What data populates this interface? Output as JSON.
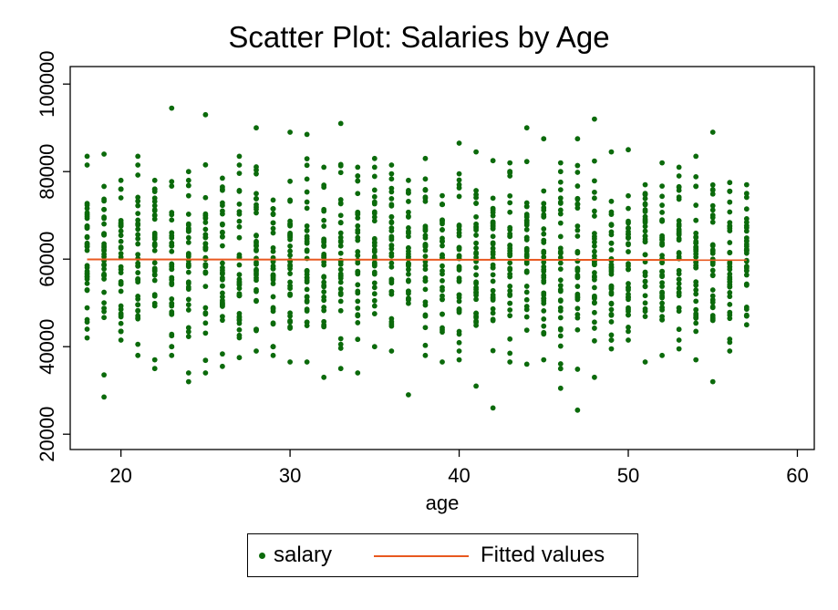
{
  "chart_data": {
    "type": "scatter",
    "title": "Scatter Plot: Salaries by Age",
    "xlabel": "age",
    "ylabel": "",
    "xlim": [
      17,
      61
    ],
    "ylim": [
      16500,
      104000
    ],
    "x_ticks": [
      20,
      30,
      40,
      50,
      60
    ],
    "y_ticks": [
      20000,
      40000,
      60000,
      80000,
      100000
    ],
    "grid": false,
    "legend_position": "bottom",
    "colors": {
      "scatter": "#0b6a0b",
      "fit": "#e8581f"
    },
    "series": [
      {
        "name": "salary",
        "type": "scatter",
        "x_range": [
          18,
          57
        ],
        "summary_per_age": [
          {
            "x": 18,
            "min": 42000,
            "max": 83500
          },
          {
            "x": 19,
            "min": 28500,
            "max": 84000
          },
          {
            "x": 20,
            "min": 41500,
            "max": 78000
          },
          {
            "x": 21,
            "min": 38000,
            "max": 83500
          },
          {
            "x": 22,
            "min": 35000,
            "max": 78000
          },
          {
            "x": 23,
            "min": 38000,
            "max": 94500
          },
          {
            "x": 24,
            "min": 32000,
            "max": 80000
          },
          {
            "x": 25,
            "min": 34000,
            "max": 93000
          },
          {
            "x": 26,
            "min": 35500,
            "max": 78500
          },
          {
            "x": 27,
            "min": 37500,
            "max": 83500
          },
          {
            "x": 28,
            "min": 39000,
            "max": 90000
          },
          {
            "x": 29,
            "min": 38000,
            "max": 73500
          },
          {
            "x": 30,
            "min": 36500,
            "max": 89000
          },
          {
            "x": 31,
            "min": 36500,
            "max": 88500
          },
          {
            "x": 32,
            "min": 33000,
            "max": 81000
          },
          {
            "x": 33,
            "min": 35000,
            "max": 91000
          },
          {
            "x": 34,
            "min": 34000,
            "max": 81000
          },
          {
            "x": 35,
            "min": 40000,
            "max": 83000
          },
          {
            "x": 36,
            "min": 39000,
            "max": 81500
          },
          {
            "x": 37,
            "min": 29000,
            "max": 78000
          },
          {
            "x": 38,
            "min": 38000,
            "max": 83000
          },
          {
            "x": 39,
            "min": 36500,
            "max": 74500
          },
          {
            "x": 40,
            "min": 37000,
            "max": 86500
          },
          {
            "x": 41,
            "min": 31000,
            "max": 84500
          },
          {
            "x": 42,
            "min": 26000,
            "max": 82500
          },
          {
            "x": 43,
            "min": 36500,
            "max": 82000
          },
          {
            "x": 44,
            "min": 36000,
            "max": 90000
          },
          {
            "x": 45,
            "min": 37000,
            "max": 87500
          },
          {
            "x": 46,
            "min": 30500,
            "max": 82000
          },
          {
            "x": 47,
            "min": 25500,
            "max": 87500
          },
          {
            "x": 48,
            "min": 33000,
            "max": 92000
          },
          {
            "x": 49,
            "min": 39500,
            "max": 84500
          },
          {
            "x": 50,
            "min": 41500,
            "max": 85000
          },
          {
            "x": 51,
            "min": 36500,
            "max": 77000
          },
          {
            "x": 52,
            "min": 38000,
            "max": 82000
          },
          {
            "x": 53,
            "min": 39500,
            "max": 81000
          },
          {
            "x": 54,
            "min": 37000,
            "max": 83500
          },
          {
            "x": 55,
            "min": 32000,
            "max": 89000
          },
          {
            "x": 56,
            "min": 39000,
            "max": 77500
          },
          {
            "x": 57,
            "min": 45000,
            "max": 77000
          }
        ],
        "points_per_age": 34,
        "center": 60000,
        "spread_sd": 10000
      },
      {
        "name": "Fitted values",
        "type": "line",
        "x": [
          18,
          57
        ],
        "y": [
          59950,
          59800
        ]
      }
    ]
  },
  "legend": {
    "scatter_label": "salary",
    "line_label": "Fitted values"
  }
}
